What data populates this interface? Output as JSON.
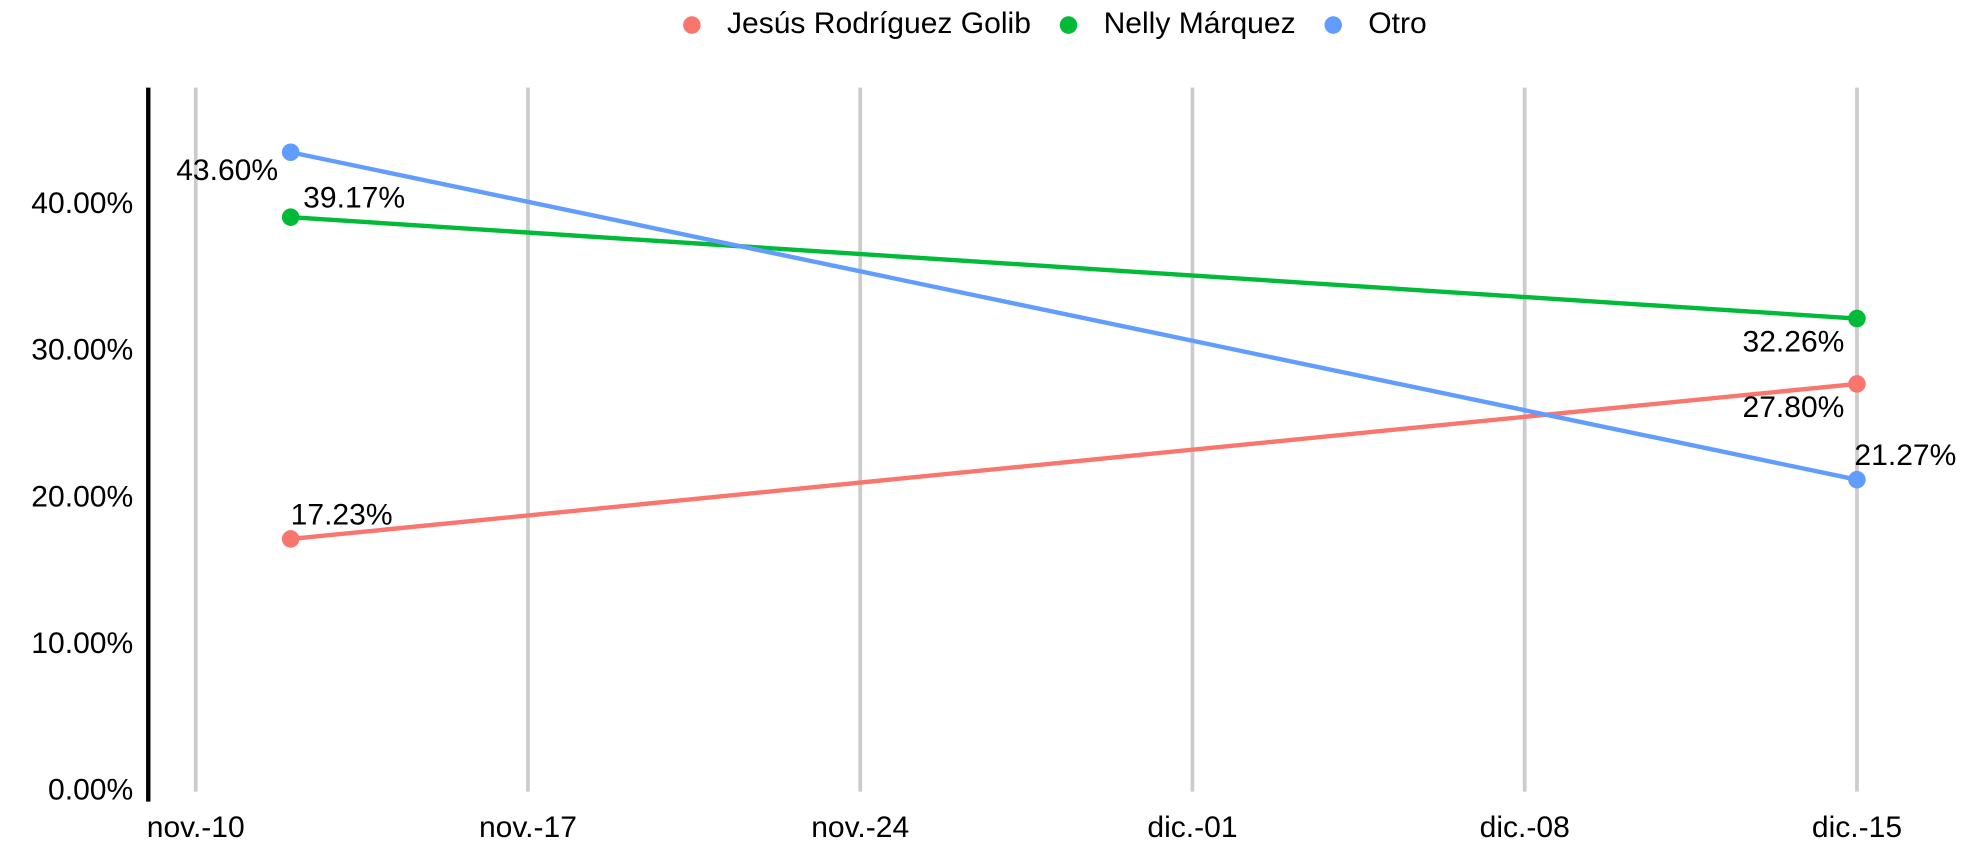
{
  "chart_data": {
    "type": "line",
    "x": [
      "11-12",
      "12-15"
    ],
    "series": [
      {
        "name": "Jesús Rodríguez Golib",
        "color": "#F8766D",
        "values": [
          17.23,
          27.8
        ],
        "value_labels": [
          "17.23%",
          "27.80%"
        ]
      },
      {
        "name": "Nelly Márquez",
        "color": "#00BA38",
        "values": [
          39.17,
          32.26
        ],
        "value_labels": [
          "39.17%",
          "32.26%"
        ]
      },
      {
        "name": "Otro",
        "color": "#619CFF",
        "values": [
          43.6,
          21.27
        ],
        "value_labels": [
          "43.60%",
          "21.27%"
        ]
      }
    ],
    "xlim": [
      "11-09",
      "12-16"
    ],
    "xticks": [
      {
        "value": "11-10",
        "label": "nov.-10"
      },
      {
        "value": "11-17",
        "label": "nov.-17"
      },
      {
        "value": "11-24",
        "label": "nov.-24"
      },
      {
        "value": "12-01",
        "label": "dic.-01"
      },
      {
        "value": "12-08",
        "label": "dic.-08"
      },
      {
        "value": "12-15",
        "label": "dic.-15"
      }
    ],
    "ylim": [
      0,
      48
    ],
    "yticks": [
      {
        "value": 0,
        "label": "0.00%"
      },
      {
        "value": 10,
        "label": "10.00%"
      },
      {
        "value": 20,
        "label": "20.00%"
      },
      {
        "value": 30,
        "label": "30.00%"
      },
      {
        "value": 40,
        "label": "40.00%"
      }
    ],
    "grid": "x",
    "legend": "top"
  }
}
